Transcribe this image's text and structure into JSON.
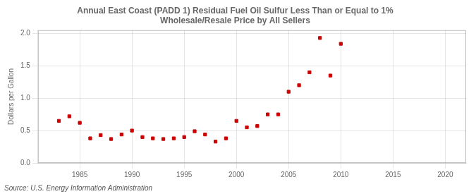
{
  "chart_data": {
    "type": "scatter",
    "title": "Annual East Coast (PADD 1) Residual Fuel Oil Sulfur Less Than or Equal to 1%\nWholesale/Resale Price by All Sellers",
    "ylabel": "Dollars per Gallon",
    "source": "Source: U.S. Energy Information Administration",
    "x": [
      1983,
      1984,
      1985,
      1986,
      1987,
      1988,
      1989,
      1990,
      1991,
      1992,
      1993,
      1994,
      1995,
      1996,
      1997,
      1998,
      1999,
      2000,
      2001,
      2002,
      2003,
      2004,
      2005,
      2006,
      2007,
      2008,
      2009,
      2010
    ],
    "values": [
      0.65,
      0.72,
      0.62,
      0.38,
      0.43,
      0.37,
      0.44,
      0.5,
      0.4,
      0.38,
      0.37,
      0.38,
      0.4,
      0.49,
      0.44,
      0.33,
      0.38,
      0.65,
      0.55,
      0.57,
      0.75,
      0.75,
      1.1,
      1.2,
      1.4,
      1.93,
      1.35,
      1.84
    ],
    "color": "#cc0000",
    "marker": "square",
    "xlim": [
      1981,
      2022
    ],
    "xticks": [
      1985,
      1990,
      1995,
      2000,
      2005,
      2010,
      2015,
      2020
    ],
    "ylim": [
      0.0,
      2.05
    ],
    "yticks": [
      {
        "value": 0,
        "label": "0.0"
      },
      0.5,
      {
        "value": 1,
        "label": "1.0"
      },
      1.5,
      {
        "value": 2,
        "label": "2.0"
      }
    ],
    "grid": true
  }
}
